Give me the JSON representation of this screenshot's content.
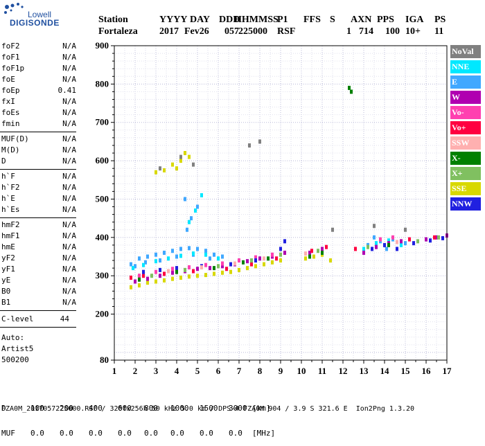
{
  "logo": {
    "line1": "Lowell",
    "line2": "DIGISONDE"
  },
  "header": {
    "labels": [
      "Station",
      "YYYY",
      "DAY",
      "DDD",
      "HHMMSS",
      "P1",
      "FFS",
      "S",
      "AXN",
      "PPS",
      "IGA",
      "PS"
    ],
    "values": [
      "Fortaleza",
      "2017",
      "Fev26",
      "057",
      "225000",
      "RSF",
      "",
      "1",
      "714",
      "100",
      "10+",
      "11"
    ]
  },
  "params": {
    "group1": [
      {
        "name": "foF2",
        "value": "N/A"
      },
      {
        "name": "foF1",
        "value": "N/A"
      },
      {
        "name": "foF1p",
        "value": "N/A"
      },
      {
        "name": "foE",
        "value": "N/A"
      },
      {
        "name": "foEp",
        "value": "0.41"
      },
      {
        "name": "fxI",
        "value": "N/A"
      },
      {
        "name": "foEs",
        "value": "N/A"
      },
      {
        "name": "fmin",
        "value": "N/A"
      }
    ],
    "group2": [
      {
        "name": "MUF(D)",
        "value": "N/A"
      },
      {
        "name": "M(D)",
        "value": "N/A"
      },
      {
        "name": "D",
        "value": "N/A"
      }
    ],
    "group3": [
      {
        "name": "h`F",
        "value": "N/A"
      },
      {
        "name": "h`F2",
        "value": "N/A"
      },
      {
        "name": "h`E",
        "value": "N/A"
      },
      {
        "name": "h`Es",
        "value": "N/A"
      }
    ],
    "group4": [
      {
        "name": "hmF2",
        "value": "N/A"
      },
      {
        "name": "hmF1",
        "value": "N/A"
      },
      {
        "name": "hmE",
        "value": "N/A"
      },
      {
        "name": "yF2",
        "value": "N/A"
      },
      {
        "name": "yF1",
        "value": "N/A"
      },
      {
        "name": "yE",
        "value": "N/A"
      },
      {
        "name": "B0",
        "value": "N/A"
      },
      {
        "name": "B1",
        "value": "N/A"
      }
    ],
    "clevel": {
      "name": "C-level",
      "value": "44"
    },
    "auto": [
      "Auto:",
      "Artist5",
      "500200"
    ]
  },
  "legend": [
    {
      "label": "NoVal",
      "color": "#808080"
    },
    {
      "label": "NNE",
      "color": "#00e8ff"
    },
    {
      "label": "E",
      "color": "#40a8ff"
    },
    {
      "label": "W",
      "color": "#b000b0"
    },
    {
      "label": "Vo-",
      "color": "#ff40b0"
    },
    {
      "label": "Vo+",
      "color": "#ff0040"
    },
    {
      "label": "SSW",
      "color": "#ffb0b0"
    },
    {
      "label": "X-",
      "color": "#008000"
    },
    {
      "label": "X+",
      "color": "#80c060"
    },
    {
      "label": "SSE",
      "color": "#d8d800"
    },
    {
      "label": "NNW",
      "color": "#2020e0"
    }
  ],
  "bottom": {
    "d_label": "D",
    "d_values": [
      "100",
      "200",
      "400",
      "600",
      "800",
      "1000",
      "1500",
      "3000"
    ],
    "d_unit": "[km]",
    "muf_label": "MUF",
    "muf_values": [
      "0.0",
      "0.0",
      "0.0",
      "0.0",
      "0.0",
      "0.0",
      "0.0",
      "0.0"
    ],
    "muf_unit": "[MHz]"
  },
  "footer": "FZA0M_2017057225000.RSF / 320fx256h 50 kHz 5.0 km / DPS-4 FZA0M 904 / 3.9 S 321.6 E  Ion2Png 1.3.20",
  "chart_data": {
    "type": "scatter",
    "x_ticks": [
      "1",
      "2",
      "3",
      "4",
      "5",
      "6",
      "7",
      "8",
      "9",
      "10",
      "11",
      "12",
      "13",
      "14",
      "15",
      "16",
      "17"
    ],
    "y_ticks": [
      "80",
      "200",
      "300",
      "400",
      "500",
      "600",
      "700",
      "800",
      "900"
    ],
    "xlim": [
      1,
      17
    ],
    "ylim": [
      80,
      900
    ],
    "grid": true,
    "series": [
      {
        "label": "E",
        "color": "#40a8ff",
        "points": [
          [
            1.8,
            330
          ],
          [
            2.2,
            345
          ],
          [
            2.6,
            350
          ],
          [
            3.0,
            355
          ],
          [
            3.4,
            360
          ],
          [
            3.8,
            365
          ],
          [
            4.2,
            370
          ],
          [
            4.6,
            372
          ],
          [
            5.0,
            370
          ],
          [
            5.4,
            365
          ],
          [
            5.8,
            355
          ],
          [
            6.2,
            350
          ],
          [
            2.0,
            325
          ],
          [
            2.5,
            335
          ],
          [
            3.2,
            340
          ],
          [
            4.0,
            350
          ],
          [
            4.8,
            355
          ],
          [
            5.6,
            345
          ],
          [
            4.5,
            420
          ],
          [
            4.7,
            450
          ],
          [
            4.4,
            500
          ],
          [
            5.0,
            480
          ],
          [
            13.2,
            380
          ],
          [
            13.8,
            390
          ],
          [
            14.4,
            395
          ],
          [
            15.0,
            385
          ],
          [
            13.5,
            400
          ],
          [
            14.1,
            370
          ]
        ]
      },
      {
        "label": "NNE",
        "color": "#00e8ff",
        "points": [
          [
            1.9,
            320
          ],
          [
            2.4,
            328
          ],
          [
            3.0,
            338
          ],
          [
            3.6,
            345
          ],
          [
            4.2,
            352
          ],
          [
            4.8,
            358
          ],
          [
            5.4,
            355
          ],
          [
            6.0,
            345
          ],
          [
            13.0,
            370
          ],
          [
            13.6,
            385
          ],
          [
            14.2,
            392
          ],
          [
            14.8,
            380
          ],
          [
            4.6,
            440
          ],
          [
            4.9,
            470
          ],
          [
            5.2,
            510
          ]
        ]
      },
      {
        "label": "SSE",
        "color": "#d8d800",
        "points": [
          [
            1.8,
            270
          ],
          [
            2.2,
            275
          ],
          [
            2.6,
            282
          ],
          [
            3.0,
            285
          ],
          [
            3.4,
            288
          ],
          [
            3.8,
            292
          ],
          [
            4.2,
            295
          ],
          [
            4.6,
            298
          ],
          [
            5.0,
            300
          ],
          [
            5.4,
            302
          ],
          [
            5.8,
            305
          ],
          [
            6.2,
            308
          ],
          [
            6.6,
            310
          ],
          [
            7.0,
            315
          ],
          [
            7.4,
            320
          ],
          [
            7.8,
            325
          ],
          [
            8.2,
            330
          ],
          [
            8.6,
            335
          ],
          [
            9.0,
            340
          ],
          [
            10.2,
            345
          ],
          [
            10.6,
            350
          ],
          [
            11.0,
            355
          ],
          [
            3.0,
            570
          ],
          [
            3.4,
            575
          ],
          [
            3.8,
            590
          ],
          [
            4.2,
            600
          ],
          [
            4.6,
            610
          ],
          [
            4.0,
            580
          ],
          [
            4.4,
            620
          ],
          [
            11.4,
            340
          ]
        ]
      },
      {
        "label": "W",
        "color": "#b000b0",
        "points": [
          [
            2.0,
            285
          ],
          [
            2.6,
            292
          ],
          [
            3.2,
            300
          ],
          [
            3.8,
            308
          ],
          [
            4.4,
            312
          ],
          [
            5.0,
            318
          ],
          [
            5.6,
            320
          ],
          [
            6.2,
            325
          ],
          [
            6.8,
            330
          ],
          [
            7.4,
            338
          ],
          [
            8.0,
            345
          ],
          [
            8.6,
            350
          ],
          [
            9.2,
            360
          ],
          [
            10.4,
            360
          ],
          [
            11.0,
            370
          ],
          [
            13.0,
            360
          ],
          [
            13.6,
            375
          ],
          [
            14.2,
            385
          ],
          [
            14.8,
            390
          ],
          [
            16.0,
            395
          ],
          [
            16.5,
            400
          ],
          [
            17.0,
            405
          ]
        ]
      },
      {
        "label": "Vo-",
        "color": "#ff40b0",
        "points": [
          [
            2.2,
            300
          ],
          [
            3.0,
            310
          ],
          [
            3.8,
            318
          ],
          [
            4.6,
            322
          ],
          [
            5.4,
            328
          ],
          [
            6.2,
            332
          ],
          [
            7.0,
            340
          ],
          [
            7.8,
            348
          ],
          [
            8.6,
            355
          ],
          [
            13.8,
            395
          ],
          [
            14.4,
            400
          ]
        ]
      },
      {
        "label": "Vo+",
        "color": "#ff0040",
        "points": [
          [
            1.8,
            295
          ],
          [
            2.4,
            300
          ],
          [
            3.4,
            305
          ],
          [
            4.8,
            312
          ],
          [
            6.4,
            318
          ],
          [
            7.6,
            330
          ],
          [
            8.8,
            345
          ],
          [
            10.5,
            365
          ],
          [
            11.2,
            375
          ],
          [
            12.6,
            370
          ],
          [
            15.2,
            395
          ],
          [
            16.4,
            400
          ]
        ]
      },
      {
        "label": "NNW",
        "color": "#2020e0",
        "points": [
          [
            2.4,
            310
          ],
          [
            3.2,
            315
          ],
          [
            4.0,
            320
          ],
          [
            5.2,
            325
          ],
          [
            6.6,
            330
          ],
          [
            7.8,
            340
          ],
          [
            9.0,
            370
          ],
          [
            9.2,
            390
          ],
          [
            13.4,
            370
          ],
          [
            14.0,
            380
          ],
          [
            14.6,
            370
          ],
          [
            15.4,
            385
          ],
          [
            16.2,
            392
          ],
          [
            16.8,
            398
          ]
        ]
      },
      {
        "label": "X-",
        "color": "#008000",
        "points": [
          [
            2.2,
            290
          ],
          [
            4.0,
            310
          ],
          [
            5.8,
            320
          ],
          [
            7.2,
            335
          ],
          [
            8.4,
            345
          ],
          [
            12.3,
            790
          ],
          [
            12.4,
            780
          ],
          [
            10.4,
            350
          ],
          [
            11.0,
            360
          ],
          [
            14.2,
            380
          ]
        ]
      },
      {
        "label": "X+",
        "color": "#80c060",
        "points": [
          [
            2.8,
            300
          ],
          [
            4.4,
            315
          ],
          [
            6.0,
            325
          ],
          [
            7.6,
            340
          ],
          [
            9.0,
            355
          ],
          [
            10.8,
            365
          ],
          [
            13.2,
            375
          ],
          [
            15.6,
            390
          ],
          [
            16.6,
            400
          ]
        ]
      },
      {
        "label": "SSW",
        "color": "#ffb0b0",
        "points": [
          [
            3.6,
            312
          ],
          [
            5.2,
            322
          ],
          [
            6.8,
            332
          ],
          [
            8.2,
            345
          ],
          [
            10.2,
            358
          ],
          [
            14.6,
            388
          ]
        ]
      },
      {
        "label": "NoVal",
        "color": "#808080",
        "points": [
          [
            3.2,
            580
          ],
          [
            4.2,
            610
          ],
          [
            4.8,
            590
          ],
          [
            7.5,
            640
          ],
          [
            8.0,
            650
          ],
          [
            11.5,
            420
          ],
          [
            13.5,
            430
          ],
          [
            15.0,
            420
          ]
        ]
      }
    ]
  }
}
